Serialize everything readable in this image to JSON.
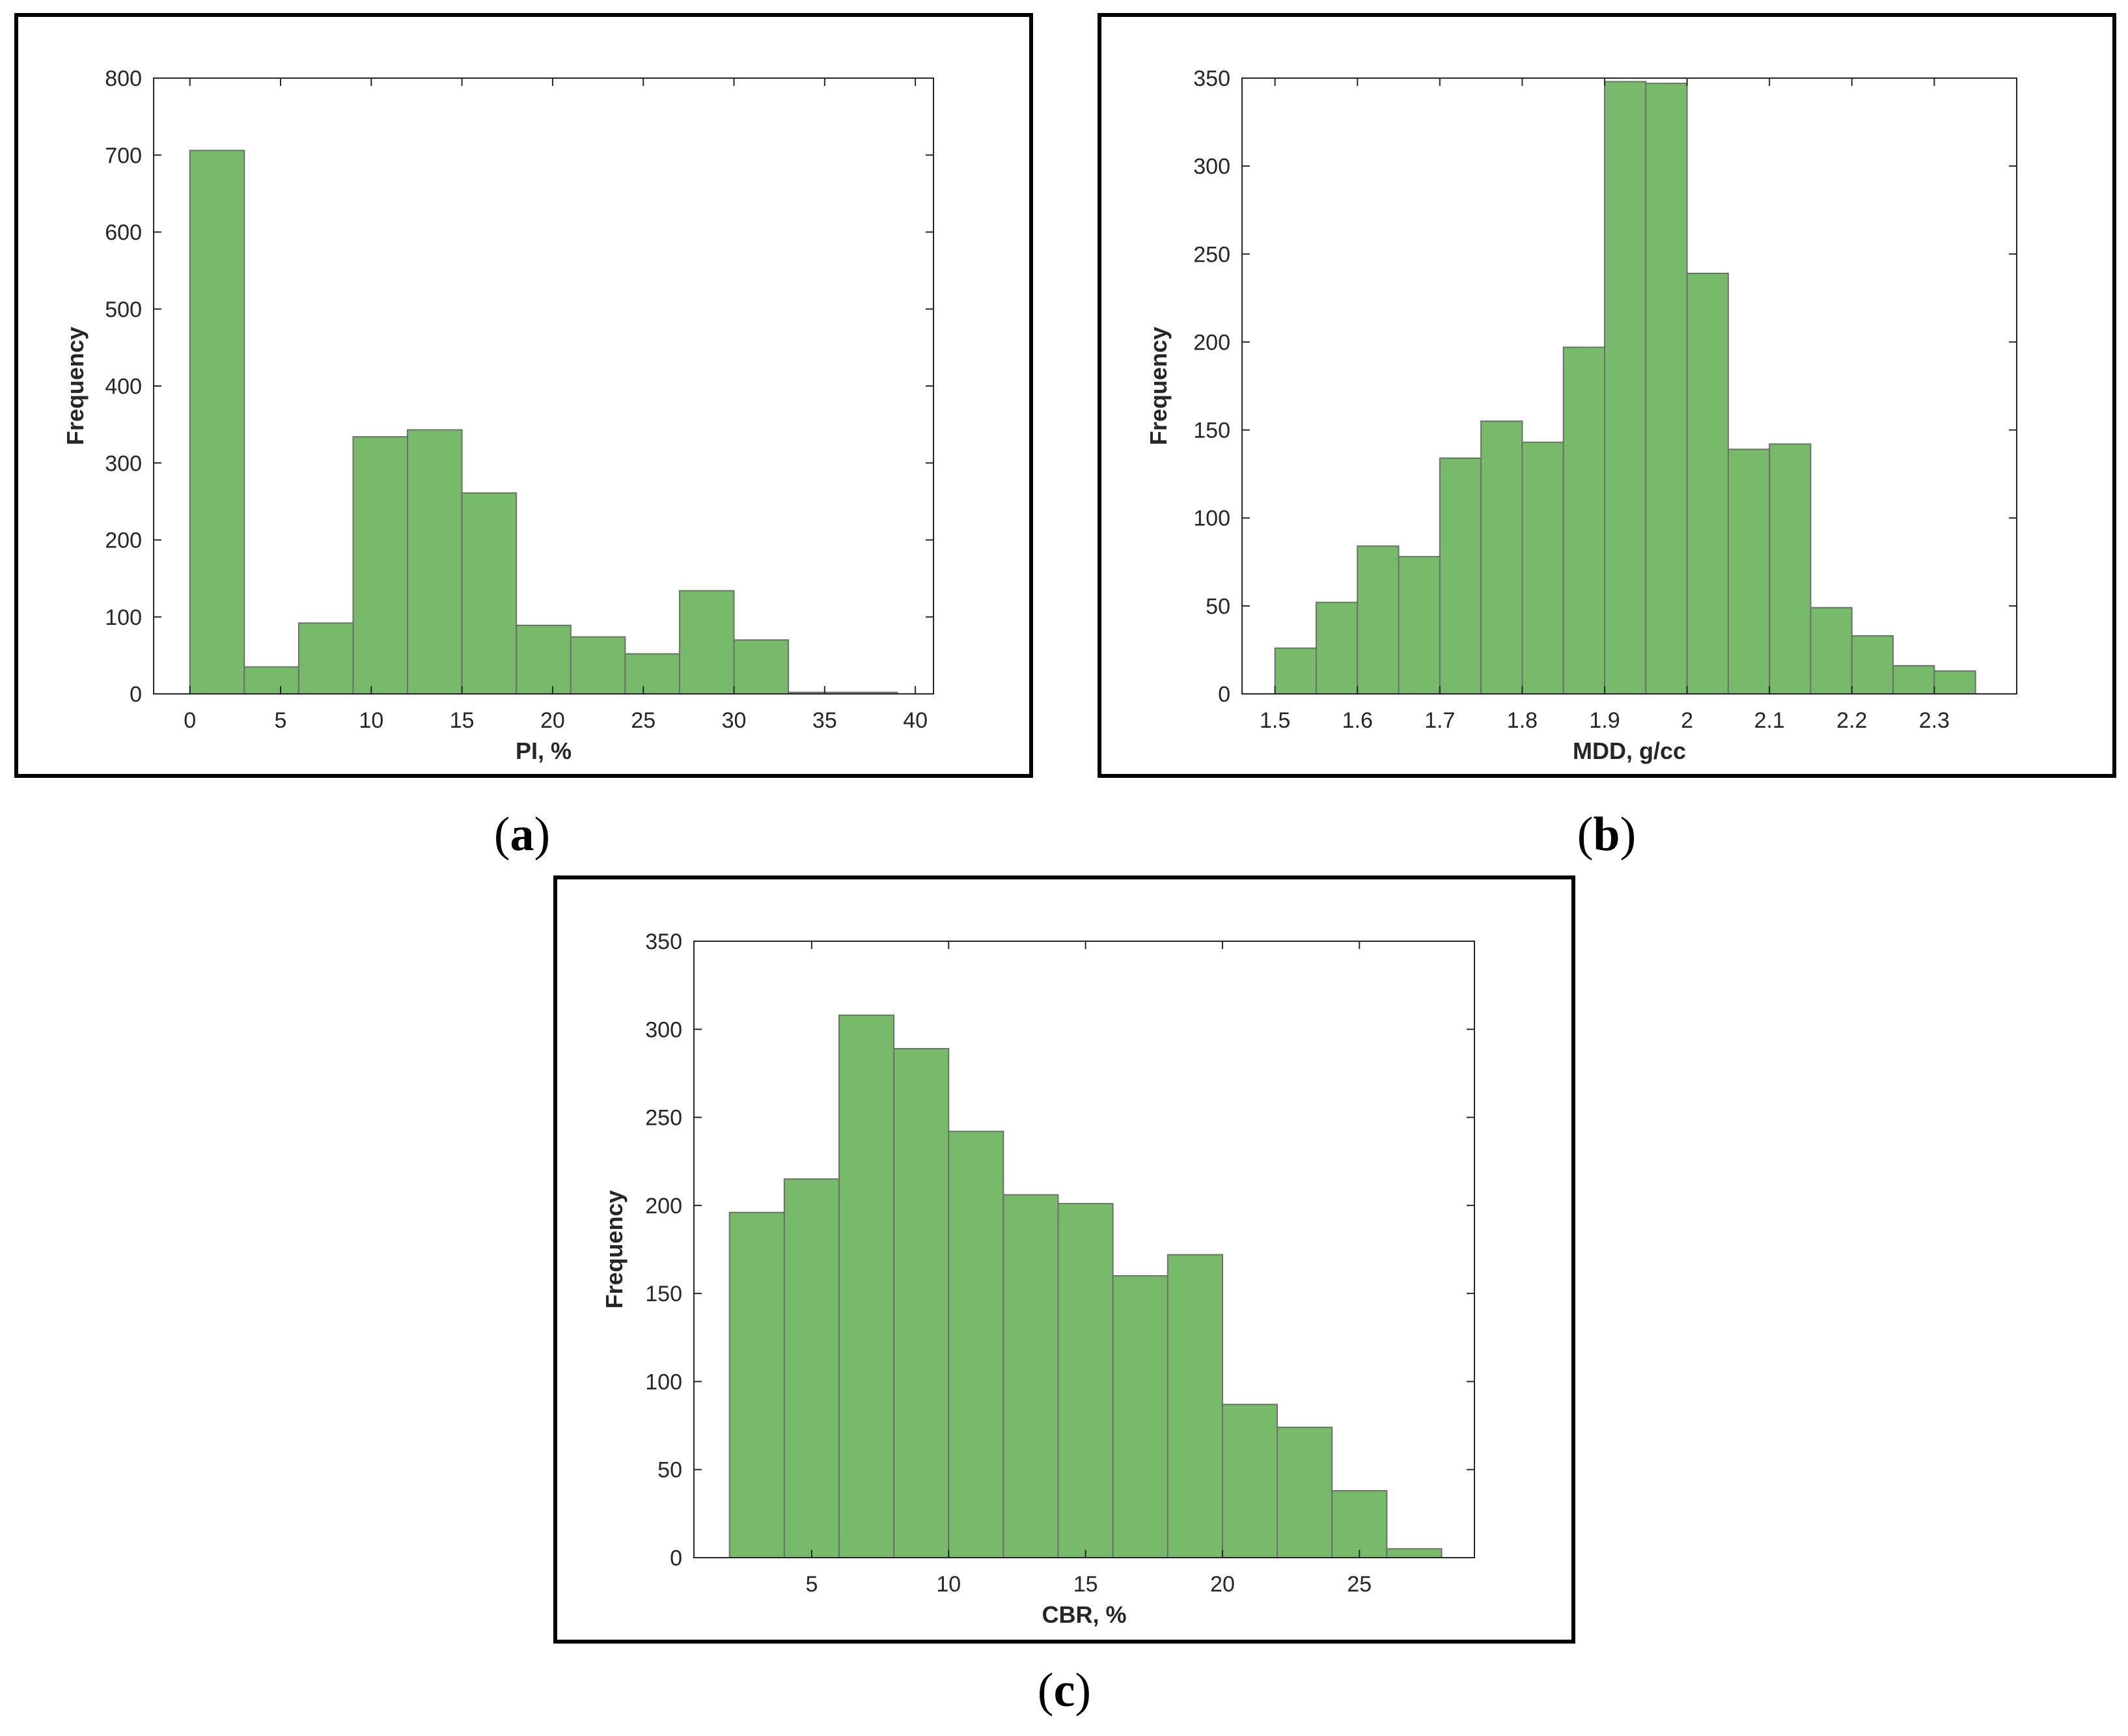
{
  "colors": {
    "bar_fill": "#77bb6a",
    "bar_stroke": "#6e6e6e",
    "axis": "#262626",
    "frame": "#000000"
  },
  "chart_data": [
    {
      "id": "a",
      "type": "bar",
      "caption": "a",
      "xlabel": "PI, %",
      "ylabel": "Frequency",
      "title": "",
      "grid": false,
      "xlim": [
        -2,
        41
      ],
      "ylim": [
        0,
        800
      ],
      "xticks": [
        0,
        5,
        10,
        15,
        20,
        25,
        30,
        35,
        40
      ],
      "yticks": [
        0,
        100,
        200,
        300,
        400,
        500,
        600,
        700,
        800
      ],
      "bin_edges": [
        0,
        3,
        6,
        9,
        12,
        15,
        18,
        21,
        24,
        27,
        30,
        33,
        36,
        39
      ],
      "values": [
        706,
        35,
        92,
        334,
        343,
        261,
        89,
        74,
        52,
        134,
        70,
        2,
        2
      ]
    },
    {
      "id": "b",
      "type": "bar",
      "caption": "b",
      "xlabel": "MDD, g/cc",
      "ylabel": "Frequency",
      "title": "",
      "grid": false,
      "xlim": [
        1.46,
        2.4
      ],
      "ylim": [
        0,
        350
      ],
      "xticks": [
        1.5,
        1.6,
        1.7,
        1.8,
        1.9,
        2,
        2.1,
        2.2,
        2.3
      ],
      "yticks": [
        0,
        50,
        100,
        150,
        200,
        250,
        300,
        350
      ],
      "bin_edges": [
        1.5,
        1.55,
        1.6,
        1.65,
        1.7,
        1.75,
        1.8,
        1.85,
        1.9,
        1.95,
        2.0,
        2.05,
        2.1,
        2.15,
        2.2,
        2.25,
        2.3,
        2.35
      ],
      "values": [
        26,
        52,
        84,
        78,
        134,
        155,
        143,
        197,
        348,
        347,
        239,
        139,
        142,
        49,
        33,
        16,
        13
      ]
    },
    {
      "id": "c",
      "type": "bar",
      "caption": "c",
      "xlabel": "CBR, %",
      "ylabel": "Frequency",
      "title": "",
      "grid": false,
      "xlim": [
        0.7,
        29.2
      ],
      "ylim": [
        0,
        350
      ],
      "xticks": [
        5,
        10,
        15,
        20,
        25
      ],
      "yticks": [
        0,
        50,
        100,
        150,
        200,
        250,
        300,
        350
      ],
      "bin_edges": [
        2,
        4,
        6,
        8,
        10,
        12,
        14,
        16,
        18,
        20,
        22,
        24,
        26,
        28
      ],
      "values": [
        196,
        215,
        308,
        289,
        242,
        206,
        201,
        160,
        172,
        87,
        74,
        38,
        5
      ]
    }
  ]
}
